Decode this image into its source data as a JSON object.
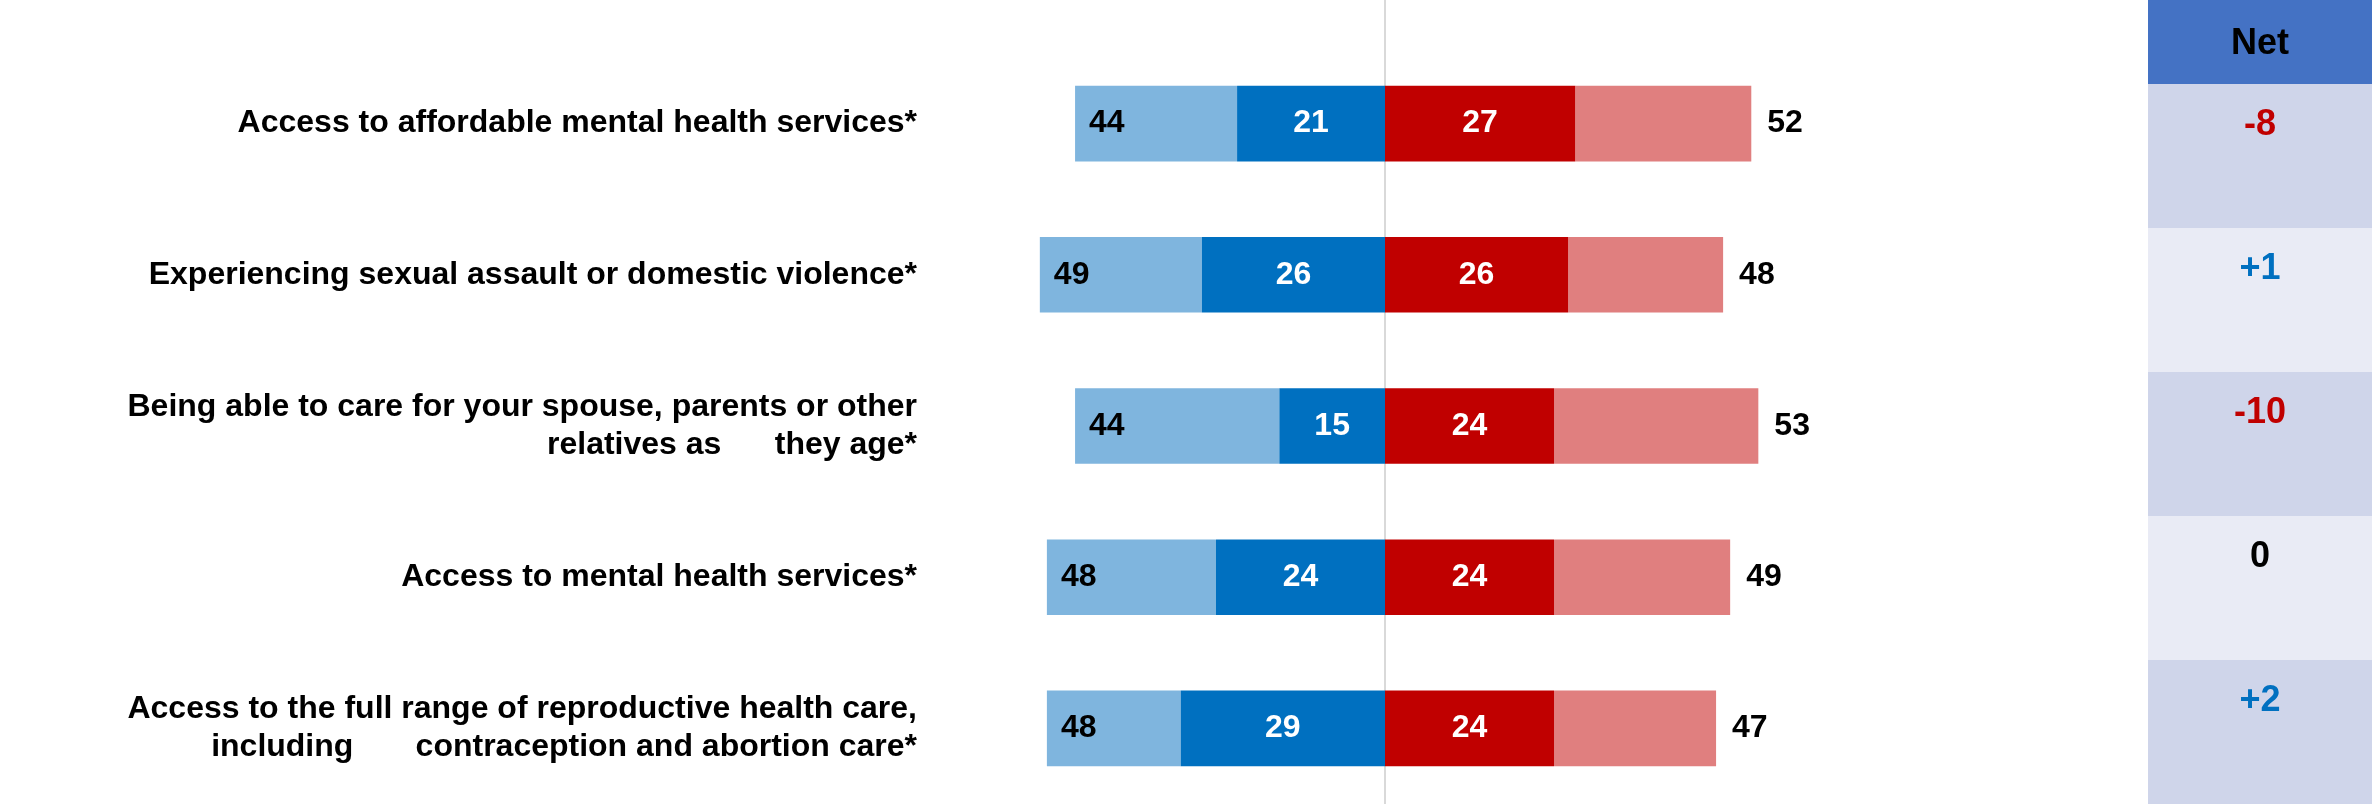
{
  "chart_data": [
    {
      "type": "bar",
      "orientation": "horizontal",
      "stacked": true,
      "legend": false,
      "categories": [
        "Access to affordable mental health services*",
        "Experiencing sexual assault or domestic violence*",
        "Being able to care for your spouse, parents or other relatives as      they age*",
        "Access to mental health services*",
        "Access to the full range of reproductive health care, including       contraception and abortion care*"
      ],
      "series": [
        {
          "color": "#0070c0",
          "values": [
            -21,
            -26,
            -15,
            -24,
            -29
          ]
        },
        {
          "color": "#7fb5de",
          "values": [
            -23,
            -23,
            -29,
            -24,
            -19
          ]
        },
        {
          "color": "#c00000",
          "values": [
            27,
            26,
            24,
            24,
            24
          ],
          "value_labels": [
            "27",
            "26",
            "24",
            "24",
            "24"
          ]
        },
        {
          "color": "#e07f7f",
          "values": [
            25,
            22,
            29,
            25,
            23
          ]
        }
      ],
      "annotations": [
        {
          "text": "21",
          "x": -21,
          "y": "Access to affordable mental health services*"
        },
        {
          "text": "26",
          "x": -26,
          "y": "Experiencing sexual assault or domestic violence*"
        },
        {
          "text": "15",
          "x": -15,
          "y": "Being able to care for your spouse, parents or other relatives as      they age*"
        },
        {
          "text": "24",
          "x": -24,
          "y": "Access to mental health services*"
        },
        {
          "text": "29",
          "x": -29,
          "y": "Access to the full range of reproductive health care, including       contraception and abortion care*"
        },
        {
          "text": "44",
          "x": -44,
          "y": "Access to affordable mental health services*"
        },
        {
          "text": "52",
          "x": 52,
          "y": "Access to affordable mental health services*"
        },
        {
          "text": "49",
          "x": -49,
          "y": "Experiencing sexual assault or domestic violence*"
        },
        {
          "text": "48",
          "x": 48,
          "y": "Experiencing sexual assault or domestic violence*"
        },
        {
          "text": "44",
          "x": -44,
          "y": "Being able to care for your spouse, parents or other relatives as      they age*"
        },
        {
          "text": "53",
          "x": 53,
          "y": "Being able to care for your spouse, parents or other relatives as      they age*"
        },
        {
          "text": "48",
          "x": -48,
          "y": "Access to mental health services*"
        },
        {
          "text": "49",
          "x": 49,
          "y": "Access to mental health services*"
        },
        {
          "text": "48",
          "x": -48,
          "y": "Access to the full range of reproductive health care, including       contraception and abortion care*"
        },
        {
          "text": "47",
          "x": 47,
          "y": "Access to the full range of reproductive health care, including       contraception and abortion care*"
        }
      ],
      "ref_lines": [
        {
          "axis": "x",
          "value": 0,
          "color": "#d9d9d9"
        }
      ]
    },
    {
      "type": "other",
      "title": "Net",
      "annotations": [
        "-8",
        "+1",
        "-10",
        "0",
        "+2"
      ],
      "colors": [
        "#c00000",
        "#0070c0",
        "#c00000",
        "#000000",
        "#0070c0"
      ]
    }
  ]
}
